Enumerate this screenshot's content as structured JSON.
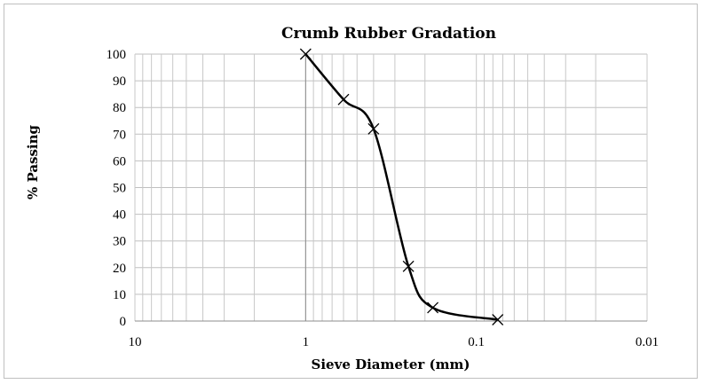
{
  "chart_data": {
    "type": "scatter",
    "title": "Crumb Rubber Gradation",
    "xlabel": "Sieve Diameter (mm)",
    "ylabel": "% Passing",
    "x_scale": "log",
    "x_reversed": true,
    "xlim": [
      10,
      0.01
    ],
    "ylim": [
      0,
      100
    ],
    "x_ticks": [
      10,
      1,
      0.1,
      0.01
    ],
    "x_tick_labels": [
      "10",
      "1",
      "0.1",
      "0.01"
    ],
    "y_ticks": [
      0,
      10,
      20,
      30,
      40,
      50,
      60,
      70,
      80,
      90,
      100
    ],
    "y_tick_labels": [
      "0",
      "10",
      "20",
      "30",
      "40",
      "50",
      "60",
      "70",
      "80",
      "90",
      "100"
    ],
    "grid": true,
    "marker": "x",
    "smooth_line": true,
    "line_color": "#000000",
    "series": [
      {
        "x": [
          1.0,
          0.6,
          0.4,
          0.25,
          0.18,
          0.075
        ],
        "y": [
          100,
          83,
          72,
          20.5,
          5,
          0.5
        ]
      }
    ]
  }
}
